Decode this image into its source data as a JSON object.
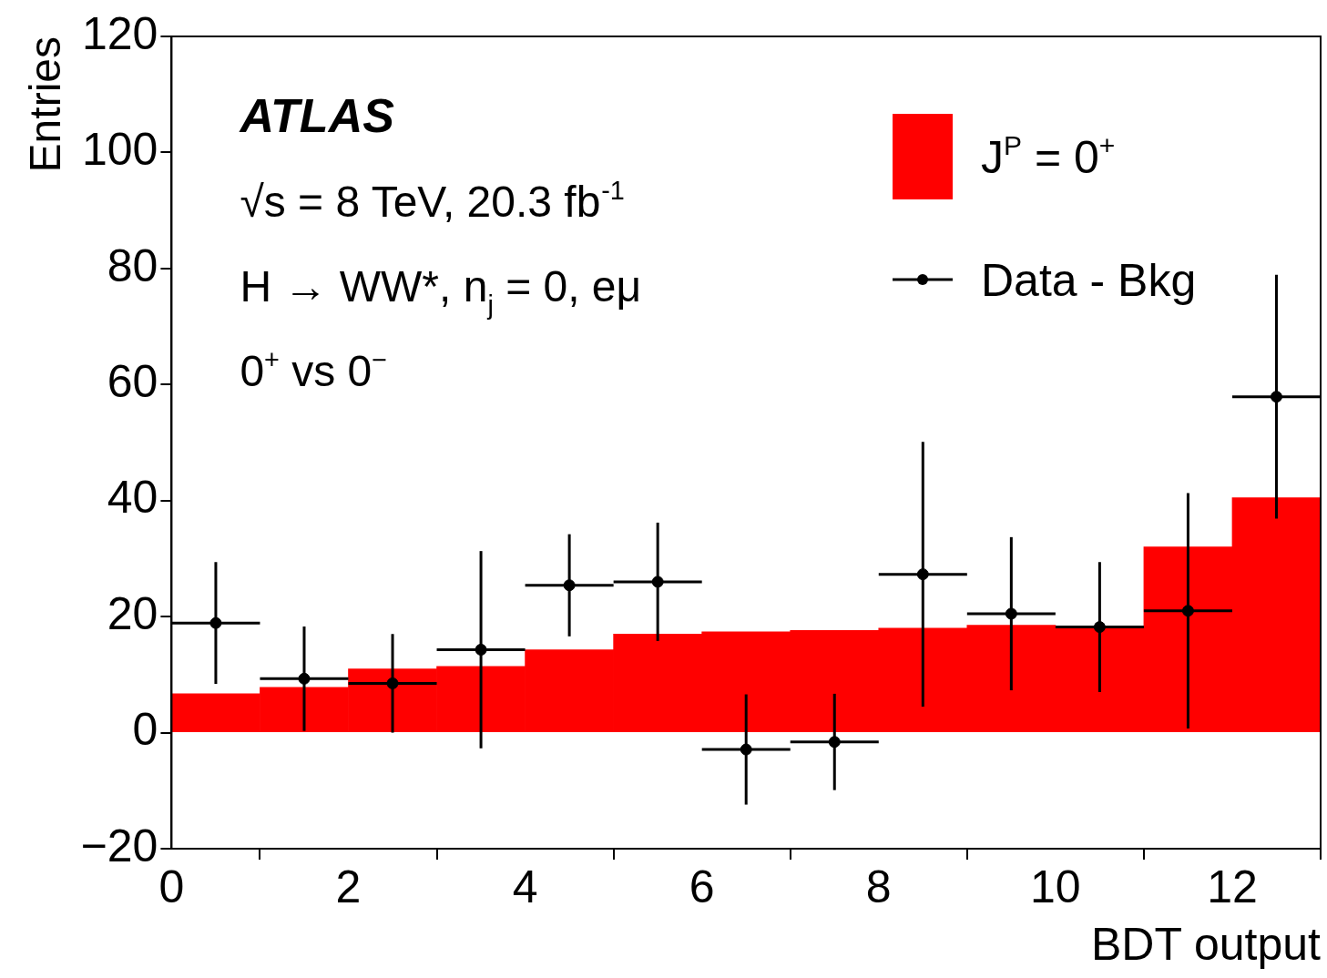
{
  "chart_data": {
    "type": "histogram",
    "xlabel": "BDT output",
    "ylabel": "Entries",
    "annotations": [
      "ATLAS",
      "√s = 8 TeV, 20.3 fb$^{-1}$",
      "H → WW*, n$_{j}$ = 0, eμ",
      "0$^{+}$ vs 0$^{−}$"
    ],
    "bins": [
      0,
      1,
      2,
      3,
      4,
      5,
      6,
      7,
      8,
      9,
      10,
      11,
      12,
      13
    ],
    "series": [
      {
        "name": "J$^{P}$ = 0$^{+}$",
        "color": "#ff0000",
        "values": [
          6.7,
          7.8,
          11,
          11.4,
          14.3,
          17,
          17.4,
          17.6,
          18,
          18.5,
          18.4,
          32,
          40.5
        ]
      },
      {
        "name": "Data - Bkg",
        "type": "scatter",
        "color": "#000000",
        "marker": "circle",
        "x": [
          0.5,
          1.5,
          2.5,
          3.5,
          4.5,
          5.5,
          6.5,
          7.5,
          8.5,
          9.5,
          10.5,
          11.5,
          12.5
        ],
        "values": [
          18.9,
          9.3,
          8.5,
          14.3,
          25.4,
          26,
          -2.9,
          -1.6,
          27.3,
          20.5,
          18.2,
          21,
          57.9
        ],
        "errors": [
          10.5,
          9,
          8.5,
          17,
          8.8,
          10.2,
          9.5,
          8.3,
          22.8,
          13.2,
          11.2,
          20.3,
          21
        ],
        "xerrors": [
          0.5,
          0.5,
          0.5,
          0.5,
          0.5,
          0.5,
          0.5,
          0.5,
          0.5,
          0.5,
          0.5,
          0.5,
          0.5
        ]
      }
    ],
    "xlim": [
      0,
      13
    ],
    "xticks": [
      0,
      2,
      4,
      6,
      8,
      10,
      12
    ],
    "ylim": [
      -20,
      120
    ],
    "yticks": [
      -20,
      0,
      20,
      40,
      60,
      80,
      100,
      120
    ],
    "grid": false,
    "legend": "top right"
  }
}
